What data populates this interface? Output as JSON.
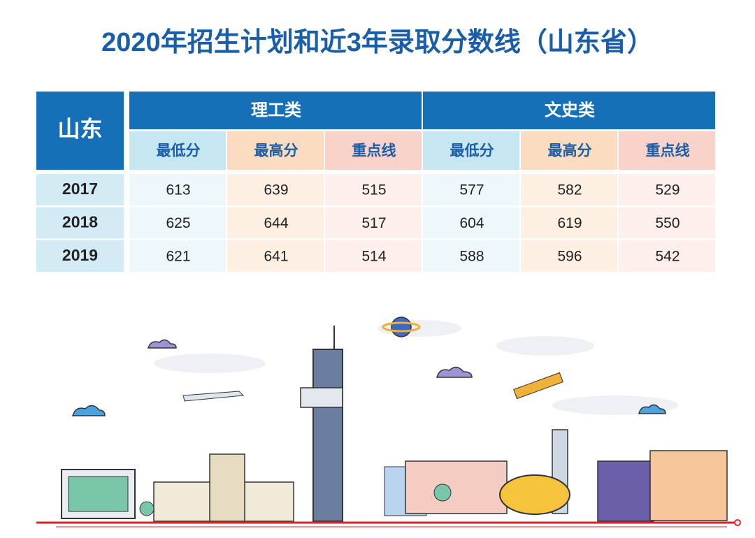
{
  "title": "2020年招生计划和近3年录取分数线（山东省）",
  "table": {
    "province": "山东",
    "groups": [
      "理工类",
      "文史类"
    ],
    "columns": [
      "最低分",
      "最高分",
      "重点线",
      "最低分",
      "最高分",
      "重点线"
    ],
    "rows": [
      [
        "2017",
        613,
        639,
        515,
        577,
        582,
        529
      ],
      [
        "2018",
        625,
        644,
        517,
        604,
        619,
        550
      ],
      [
        "2019",
        621,
        641,
        514,
        588,
        596,
        542
      ]
    ]
  }
}
